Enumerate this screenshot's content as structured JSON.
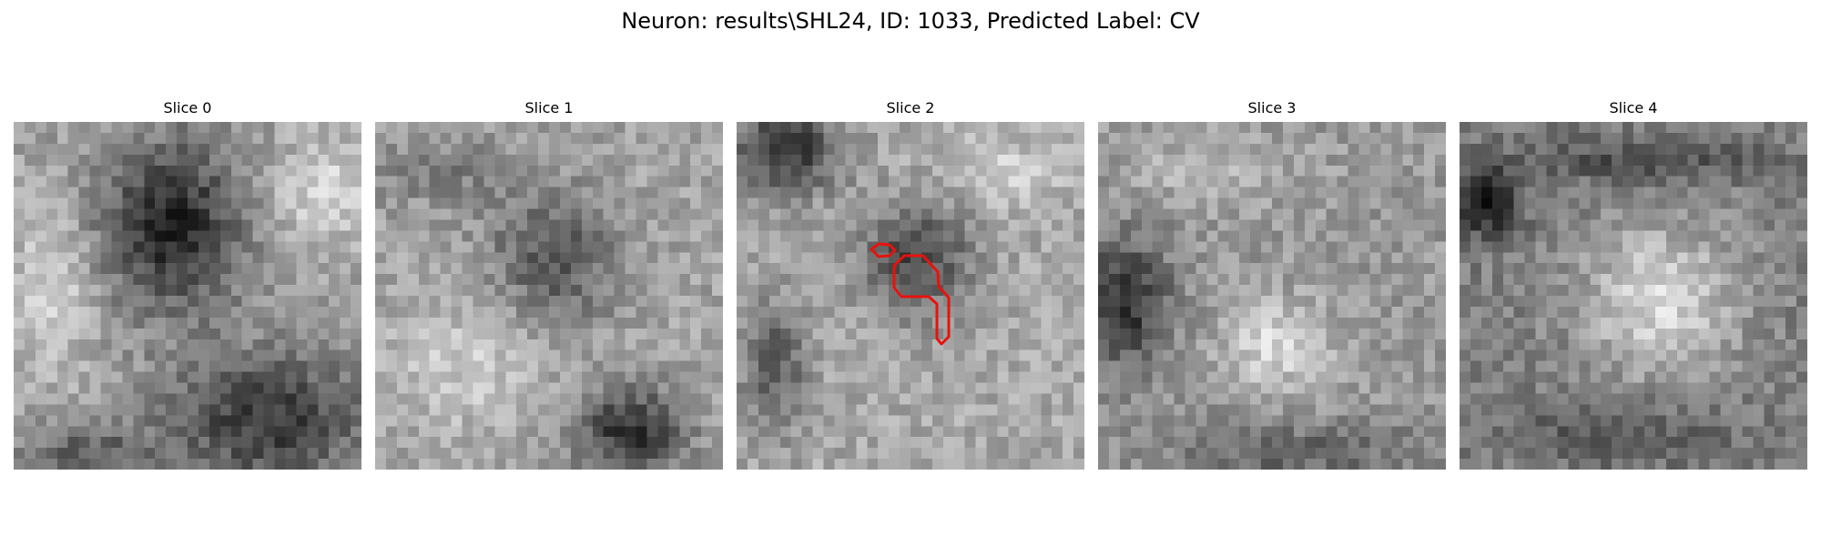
{
  "figure": {
    "title": "Neuron: results\\SHL24, ID: 1033, Predicted Label: CV"
  },
  "colormap": "gray",
  "contour_color": "#e8120c",
  "panels": [
    {
      "title": "Slice 0"
    },
    {
      "title": "Slice 1"
    },
    {
      "title": "Slice 2"
    },
    {
      "title": "Slice 3"
    },
    {
      "title": "Slice 4"
    }
  ]
}
